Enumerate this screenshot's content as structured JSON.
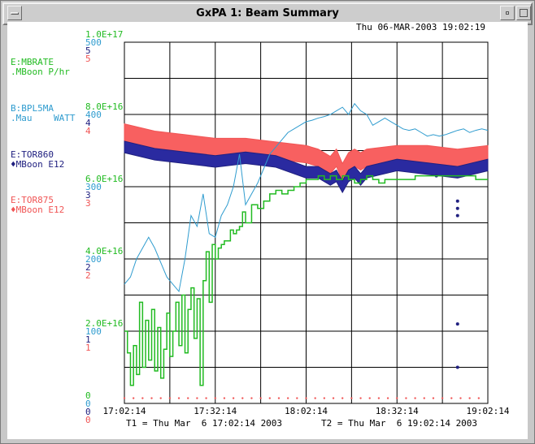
{
  "window": {
    "title": "GxPA 1: Beam Summary"
  },
  "header": {
    "datetime": "Thu 06-MAR-2003 19:02:19"
  },
  "legend": [
    {
      "name": "E:MBRATE",
      "unit": ".MBoon P/hr",
      "color": "#22bb22"
    },
    {
      "name": "B:BPL5MA",
      "unit": ".Mau    WATT",
      "color": "#2f9ccf"
    },
    {
      "name": "E:TOR860",
      "unit": "♦MBoon E12",
      "color": "#202080"
    },
    {
      "name": "E:TOR875",
      "unit": "♦MBoon E12",
      "color": "#f05555"
    }
  ],
  "y_axis_labels": [
    {
      "green": "1.0E+17",
      "cyan": "500",
      "navy": "5",
      "red": "5"
    },
    {
      "green": "8.0E+16",
      "cyan": "400",
      "navy": "4",
      "red": "4"
    },
    {
      "green": "6.0E+16",
      "cyan": "300",
      "navy": "3",
      "red": "3"
    },
    {
      "green": "4.0E+16",
      "cyan": "200",
      "navy": "2",
      "red": "2"
    },
    {
      "green": "2.0E+16",
      "cyan": "100",
      "navy": "1",
      "red": "1"
    },
    {
      "green": "0",
      "cyan": "0",
      "navy": "0",
      "red": "0"
    }
  ],
  "x_axis_labels": [
    "17:02:14",
    "17:32:14",
    "18:02:14",
    "18:32:14",
    "19:02:14"
  ],
  "footer": {
    "t1": "T1 = Thu Mar  6 17:02:14 2003",
    "t2": "T2 = Thu Mar  6 19:02:14 2003"
  },
  "chart_data": {
    "type": "line",
    "x_unit": "minutes since T1",
    "x_range": [
      0,
      120
    ],
    "series": [
      {
        "name": "E:MBRATE",
        "axis_max": 1e+17,
        "x": [
          0,
          1,
          2,
          3,
          4,
          5,
          6,
          7,
          8,
          9,
          10,
          11,
          12,
          13,
          14,
          15,
          16,
          17,
          18,
          19,
          20,
          21,
          22,
          23,
          24,
          25,
          26,
          27,
          28,
          29,
          30,
          31,
          32,
          33,
          34,
          35,
          36,
          37,
          38,
          39,
          40,
          42,
          44,
          46,
          48,
          50,
          52,
          54,
          56,
          58,
          60,
          62,
          64,
          66,
          68,
          70,
          72,
          74,
          76,
          78,
          80,
          82,
          84,
          86,
          88,
          90,
          92,
          94,
          96,
          98,
          100,
          102,
          104,
          106,
          108,
          110,
          112,
          114,
          116,
          118,
          120
        ],
        "y": [
          2e+16,
          1.4e+16,
          5000000000000000.0,
          1.6e+16,
          8000000000000000.0,
          2.8e+16,
          1e+16,
          2.3e+16,
          1.2e+16,
          2.6e+16,
          9000000000000000.0,
          2.1e+16,
          7000000000000000.0,
          1.5e+16,
          2.5e+16,
          1.3e+16,
          2e+16,
          2.8e+16,
          1.6e+16,
          3e+16,
          1.4e+16,
          2.6e+16,
          3.2e+16,
          1.8e+16,
          2.9e+16,
          5000000000000000.0,
          3.4e+16,
          4.2e+16,
          2.8e+16,
          4.4e+16,
          4e+16,
          4.3e+16,
          4.4e+16,
          4.5e+16,
          4.5e+16,
          4.8e+16,
          4.7e+16,
          4.8e+16,
          4.9e+16,
          5.3e+16,
          5e+16,
          5.5e+16,
          5.4e+16,
          5.6e+16,
          5.8e+16,
          5.9e+16,
          5.8e+16,
          5.9e+16,
          6e+16,
          6.1e+16,
          6.2e+16,
          6.2e+16,
          6.3e+16,
          6.2e+16,
          6.3e+16,
          6.2e+16,
          6.3e+16,
          6.2e+16,
          6.1e+16,
          6.2e+16,
          6.3e+16,
          6.2e+16,
          6.1e+16,
          6.2e+16,
          6.2e+16,
          6.2e+16,
          6.2e+16,
          6.2e+16,
          6.3e+16,
          6.3e+16,
          6.3e+16,
          6.3e+16,
          6.3e+16,
          6.3e+16,
          6.3e+16,
          6.3e+16,
          6.3e+16,
          6.3e+16,
          6.2e+16,
          6.2e+16,
          6.2e+16
        ]
      },
      {
        "name": "B:BPL5MA",
        "axis_max": 500,
        "x": [
          0,
          2,
          4,
          6,
          8,
          10,
          12,
          14,
          16,
          18,
          20,
          22,
          24,
          26,
          28,
          30,
          32,
          34,
          36,
          38,
          40,
          42,
          44,
          46,
          48,
          50,
          52,
          54,
          56,
          58,
          60,
          62,
          64,
          66,
          68,
          70,
          72,
          74,
          76,
          78,
          80,
          82,
          84,
          86,
          88,
          90,
          92,
          94,
          96,
          98,
          100,
          102,
          104,
          106,
          108,
          110,
          112,
          114,
          116,
          118,
          120
        ],
        "y": [
          165,
          175,
          200,
          215,
          230,
          215,
          195,
          175,
          165,
          155,
          200,
          260,
          245,
          290,
          235,
          230,
          260,
          275,
          300,
          345,
          275,
          290,
          305,
          325,
          345,
          355,
          365,
          375,
          380,
          385,
          390,
          392,
          395,
          397,
          400,
          405,
          410,
          400,
          415,
          405,
          400,
          385,
          390,
          395,
          390,
          385,
          380,
          378,
          380,
          375,
          370,
          372,
          370,
          372,
          375,
          378,
          380,
          375,
          378,
          380,
          378
        ]
      },
      {
        "name": "E:TOR860",
        "axis_max": 5,
        "x": [
          0,
          10,
          20,
          30,
          40,
          50,
          60,
          64,
          68,
          70,
          72,
          74,
          76,
          78,
          80,
          90,
          100,
          110,
          120
        ],
        "y": [
          3.55,
          3.45,
          3.4,
          3.35,
          3.4,
          3.35,
          3.2,
          3.2,
          3.1,
          3.15,
          3.0,
          3.15,
          3.2,
          3.1,
          3.2,
          3.3,
          3.25,
          3.2,
          3.3
        ],
        "outliers": [
          {
            "x": 103,
            "y": 3.15
          },
          {
            "x": 110,
            "y": 2.8
          },
          {
            "x": 110,
            "y": 2.7
          },
          {
            "x": 110,
            "y": 2.6
          },
          {
            "x": 110,
            "y": 1.1
          },
          {
            "x": 110,
            "y": 0.5
          }
        ]
      },
      {
        "name": "E:TOR875",
        "axis_max": 5,
        "x": [
          0,
          10,
          20,
          30,
          40,
          50,
          60,
          64,
          68,
          70,
          72,
          74,
          76,
          78,
          80,
          90,
          100,
          110,
          120
        ],
        "y": [
          3.75,
          3.65,
          3.6,
          3.55,
          3.55,
          3.5,
          3.45,
          3.4,
          3.3,
          3.4,
          3.2,
          3.35,
          3.4,
          3.35,
          3.4,
          3.45,
          3.45,
          3.4,
          3.45
        ],
        "baseline": 0.05
      }
    ]
  }
}
